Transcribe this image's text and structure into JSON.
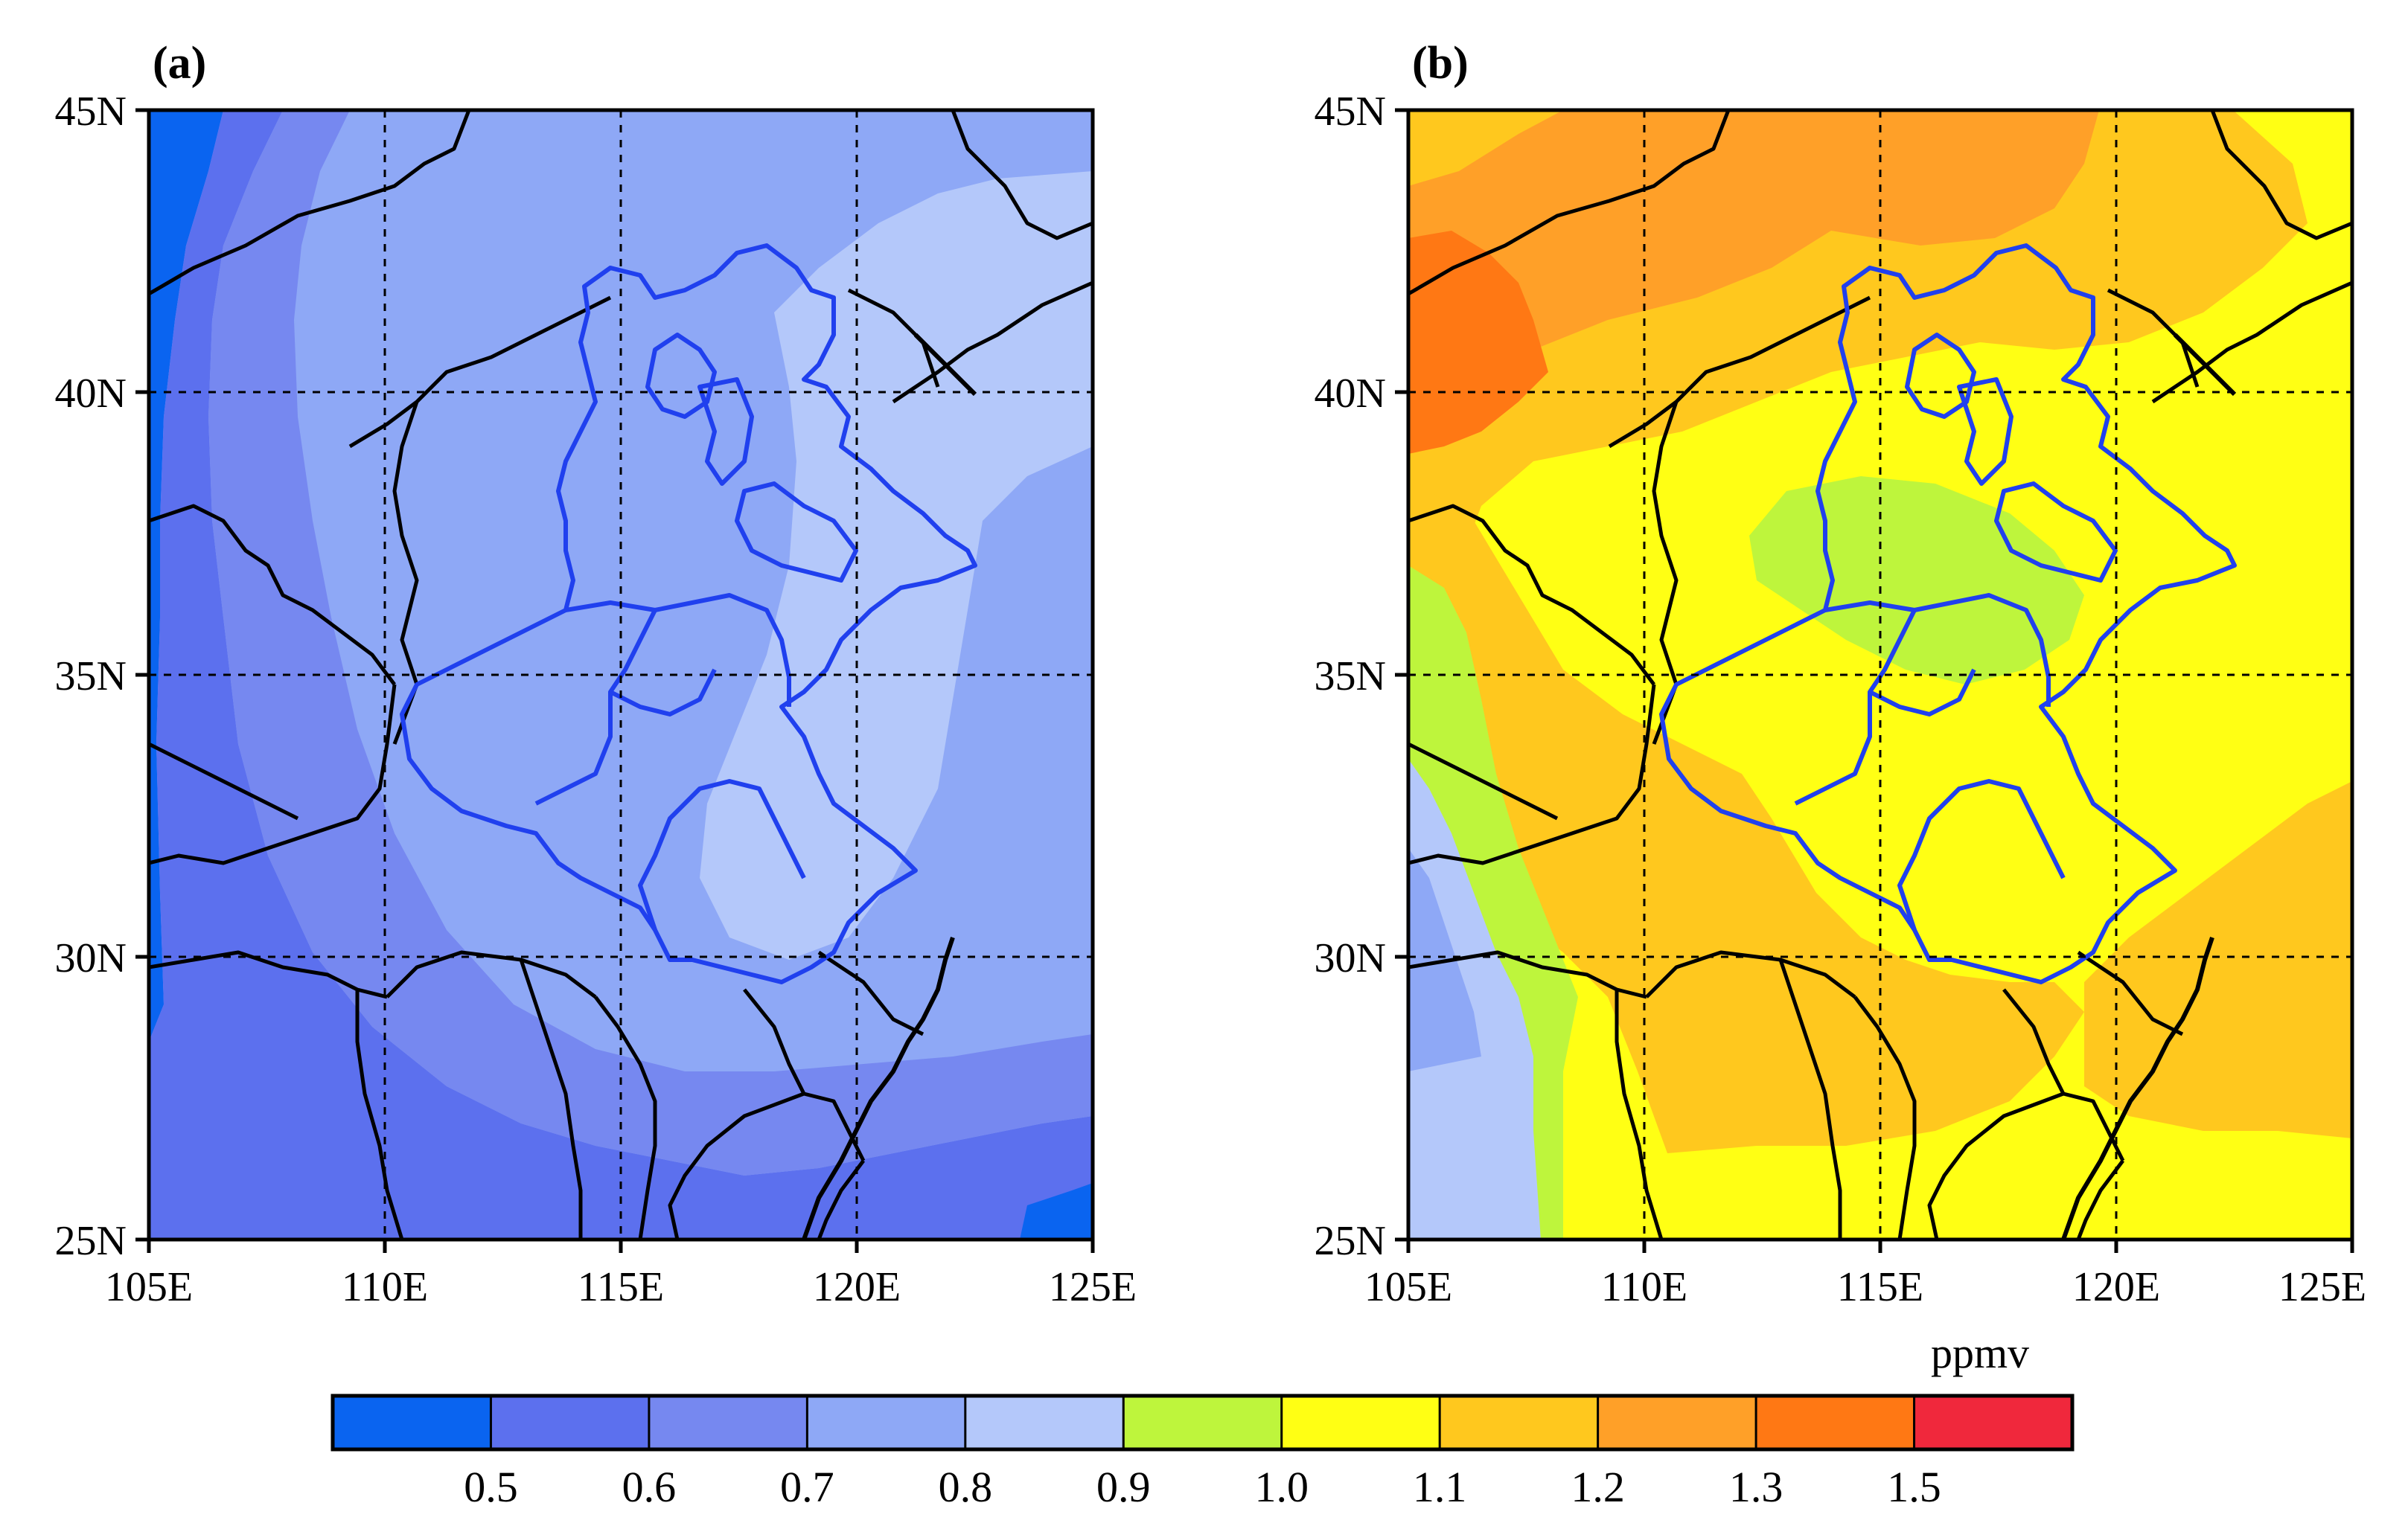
{
  "figure": {
    "unit": "ppmv",
    "lon_ticks": [
      "105E",
      "110E",
      "115E",
      "120E",
      "125E"
    ],
    "lat_ticks": [
      "45N",
      "40N",
      "35N",
      "30N",
      "25N"
    ],
    "colorbar": {
      "colors": [
        "#0a64f0",
        "#5c70ee",
        "#7688f0",
        "#8ea8f6",
        "#b4c8fa",
        "#bef53c",
        "#ffff14",
        "#ffc81e",
        "#ffa028",
        "#ff7814",
        "#f0283c"
      ],
      "labels": [
        "0.5",
        "0.6",
        "0.7",
        "0.8",
        "0.9",
        "1.0",
        "1.1",
        "1.2",
        "1.3",
        "1.5"
      ]
    },
    "panels": [
      {
        "label": "(a)",
        "background": "#8ea8f6",
        "regions": [
          {
            "name": "west-edge",
            "color": "#0a64f0"
          },
          {
            "name": "ring-0.6",
            "color": "#5c70ee"
          },
          {
            "name": "ring-0.7",
            "color": "#7688f0"
          },
          {
            "name": "center-0.9",
            "color": "#b4c8fa"
          },
          {
            "name": "se-0.6",
            "color": "#5c70ee"
          },
          {
            "name": "se-0.5",
            "color": "#0a64f0"
          }
        ]
      },
      {
        "label": "(b)",
        "background": "#ffff14",
        "regions": [
          {
            "name": "north-1.2",
            "color": "#ffc81e"
          },
          {
            "name": "north-1.3",
            "color": "#ffa028"
          },
          {
            "name": "nw-1.5",
            "color": "#ff7814"
          },
          {
            "name": "south-1.2",
            "color": "#ffc81e"
          },
          {
            "name": "se-1.2",
            "color": "#ffc81e"
          },
          {
            "name": "center-1.0",
            "color": "#bef53c"
          },
          {
            "name": "west-1.0",
            "color": "#bef53c"
          },
          {
            "name": "west-0.9",
            "color": "#b4c8fa"
          },
          {
            "name": "west-0.8",
            "color": "#8ea8f6"
          }
        ]
      }
    ]
  }
}
